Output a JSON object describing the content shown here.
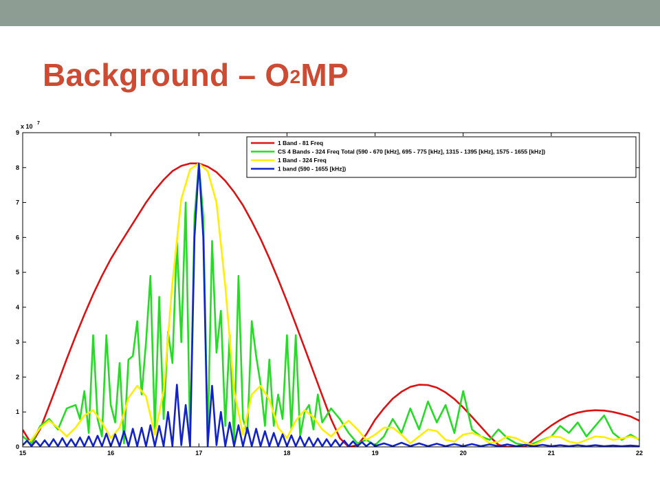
{
  "slide": {
    "title_main": "Background – O",
    "title_sup": "2",
    "title_tail": "MP",
    "title_color": "#cc4b32",
    "top_bar_color": "#8e9d94"
  },
  "chart_data": {
    "type": "line",
    "xlim": [
      15,
      22
    ],
    "ylim": [
      0,
      9
    ],
    "xticks": [
      15,
      16,
      17,
      18,
      19,
      20,
      21,
      22
    ],
    "yticks": [
      0,
      1,
      2,
      3,
      4,
      5,
      6,
      7,
      8,
      9
    ],
    "y_multiplier_base": "x 10",
    "y_multiplier_exp": "7",
    "legend_position": "top-right",
    "grid": false,
    "series": [
      {
        "name": "1 Band - 81 Freq",
        "color": "#dd1111",
        "x": [
          15.0,
          15.1,
          15.2,
          15.3,
          15.4,
          15.5,
          15.6,
          15.7,
          15.8,
          15.9,
          16.0,
          16.1,
          16.2,
          16.3,
          16.4,
          16.5,
          16.6,
          16.7,
          16.8,
          16.9,
          17.0,
          17.1,
          17.2,
          17.3,
          17.4,
          17.5,
          17.6,
          17.7,
          17.8,
          17.9,
          18.0,
          18.1,
          18.2,
          18.3,
          18.4,
          18.5,
          18.6,
          18.7,
          18.8,
          18.9,
          19.0,
          19.1,
          19.2,
          19.3,
          19.4,
          19.5,
          19.6,
          19.7,
          19.8,
          19.9,
          20.0,
          20.1,
          20.2,
          20.3,
          20.4,
          20.5,
          20.6,
          20.7,
          20.8,
          20.9,
          21.0,
          21.1,
          21.2,
          21.3,
          21.4,
          21.5,
          21.6,
          21.7,
          21.8,
          21.9,
          22.0
        ],
        "y": [
          0.49,
          0.08,
          0.52,
          1.17,
          1.84,
          2.52,
          3.17,
          3.79,
          4.37,
          4.9,
          5.38,
          5.8,
          6.2,
          6.6,
          7.0,
          7.35,
          7.65,
          7.9,
          8.05,
          8.12,
          8.12,
          8.03,
          7.87,
          7.62,
          7.3,
          6.92,
          6.46,
          5.96,
          5.4,
          4.8,
          4.17,
          3.51,
          2.83,
          2.15,
          1.47,
          0.8,
          0.25,
          0.0,
          0.05,
          0.36,
          0.78,
          1.1,
          1.38,
          1.58,
          1.72,
          1.78,
          1.77,
          1.7,
          1.56,
          1.37,
          1.13,
          0.86,
          0.58,
          0.3,
          0.06,
          0.0,
          0.0,
          0.0,
          0.21,
          0.42,
          0.61,
          0.77,
          0.9,
          0.98,
          1.03,
          1.05,
          1.04,
          1.0,
          0.94,
          0.87,
          0.75
        ]
      },
      {
        "name": "CS 4 Bands - 324 Freq Total (590 - 670 [kHz], 695 - 775 [kHz], 1315 - 1395 [kHz], 1575 - 1655 [kHz])",
        "color": "#22dd22",
        "x": [
          15.0,
          15.1,
          15.2,
          15.3,
          15.4,
          15.5,
          15.6,
          15.65,
          15.7,
          15.75,
          15.8,
          15.85,
          15.9,
          15.95,
          16.0,
          16.05,
          16.1,
          16.15,
          16.2,
          16.25,
          16.3,
          16.35,
          16.4,
          16.45,
          16.5,
          16.55,
          16.6,
          16.65,
          16.7,
          16.75,
          16.8,
          16.85,
          16.9,
          16.95,
          17.0,
          17.05,
          17.1,
          17.15,
          17.2,
          17.25,
          17.3,
          17.35,
          17.4,
          17.45,
          17.5,
          17.55,
          17.6,
          17.65,
          17.7,
          17.75,
          17.8,
          17.85,
          17.9,
          17.95,
          18.0,
          18.05,
          18.1,
          18.15,
          18.2,
          18.25,
          18.3,
          18.35,
          18.4,
          18.5,
          18.6,
          18.7,
          18.8,
          18.9,
          19.0,
          19.1,
          19.2,
          19.3,
          19.4,
          19.5,
          19.6,
          19.7,
          19.8,
          19.9,
          20.0,
          20.1,
          20.2,
          20.3,
          20.4,
          20.5,
          20.6,
          20.7,
          20.8,
          20.9,
          21.0,
          21.1,
          21.2,
          21.3,
          21.4,
          21.5,
          21.6,
          21.7,
          21.8,
          21.9,
          22.0
        ],
        "y": [
          0.3,
          0.1,
          0.6,
          0.8,
          0.5,
          1.1,
          1.2,
          0.8,
          1.6,
          0.4,
          3.2,
          0.8,
          0.3,
          3.2,
          1.2,
          0.7,
          2.4,
          0.1,
          2.5,
          2.6,
          3.6,
          1.5,
          3.0,
          4.9,
          0.5,
          4.3,
          0.8,
          3.3,
          2.4,
          5.9,
          3.0,
          7.0,
          0.2,
          6.6,
          8.1,
          6.6,
          0.2,
          5.9,
          2.7,
          3.9,
          0.6,
          3.2,
          0.1,
          4.9,
          0.8,
          0.4,
          3.6,
          2.6,
          1.8,
          0.6,
          2.5,
          0.6,
          1.5,
          0.8,
          3.2,
          0.5,
          3.2,
          0.3,
          1.0,
          1.2,
          0.5,
          1.5,
          0.7,
          1.1,
          0.8,
          0.4,
          0.1,
          0.2,
          0.05,
          0.3,
          0.8,
          0.4,
          1.1,
          0.5,
          1.3,
          0.7,
          1.2,
          0.4,
          1.6,
          0.5,
          0.3,
          0.2,
          0.5,
          0.25,
          0.1,
          0.05,
          0.1,
          0.2,
          0.3,
          0.6,
          0.4,
          0.7,
          0.3,
          0.6,
          0.9,
          0.4,
          0.2,
          0.35,
          0.2
        ]
      },
      {
        "name": "1 Band - 324 Freq",
        "color": "#ffee00",
        "x": [
          15.0,
          15.1,
          15.2,
          15.3,
          15.4,
          15.5,
          15.6,
          15.7,
          15.8,
          15.9,
          16.0,
          16.1,
          16.2,
          16.3,
          16.4,
          16.5,
          16.6,
          16.7,
          16.8,
          16.9,
          17.0,
          17.1,
          17.2,
          17.3,
          17.4,
          17.5,
          17.6,
          17.7,
          17.8,
          17.9,
          18.0,
          18.1,
          18.2,
          18.3,
          18.4,
          18.5,
          18.6,
          18.7,
          18.8,
          18.9,
          19.0,
          19.1,
          19.2,
          19.3,
          19.4,
          19.5,
          19.6,
          19.7,
          19.8,
          19.9,
          20.0,
          20.1,
          20.2,
          20.3,
          20.4,
          20.5,
          20.6,
          20.7,
          20.8,
          20.9,
          21.0,
          21.1,
          21.2,
          21.3,
          21.4,
          21.5,
          21.6,
          21.7,
          21.8,
          21.9,
          22.0
        ],
        "y": [
          0.05,
          0.2,
          0.55,
          0.75,
          0.55,
          0.3,
          0.55,
          0.9,
          1.05,
          0.7,
          0.25,
          0.55,
          1.4,
          1.75,
          1.45,
          0.35,
          1.6,
          4.7,
          7.1,
          7.95,
          8.12,
          7.9,
          7.0,
          4.6,
          1.6,
          0.35,
          1.5,
          1.75,
          1.35,
          0.55,
          0.25,
          0.75,
          1.05,
          0.85,
          0.5,
          0.3,
          0.55,
          0.75,
          0.5,
          0.2,
          0.35,
          0.55,
          0.55,
          0.35,
          0.1,
          0.3,
          0.5,
          0.45,
          0.2,
          0.15,
          0.35,
          0.4,
          0.3,
          0.1,
          0.15,
          0.3,
          0.25,
          0.12,
          0.05,
          0.18,
          0.3,
          0.28,
          0.15,
          0.1,
          0.2,
          0.3,
          0.28,
          0.2,
          0.24,
          0.3,
          0.22
        ]
      },
      {
        "name": "1 band (590 - 1655 [kHz])",
        "color": "#1122cc",
        "x": [
          15.0,
          15.05,
          15.1,
          15.15,
          15.2,
          15.25,
          15.3,
          15.35,
          15.4,
          15.45,
          15.5,
          15.55,
          15.6,
          15.65,
          15.7,
          15.75,
          15.8,
          15.85,
          15.9,
          15.95,
          16.0,
          16.05,
          16.1,
          16.15,
          16.2,
          16.25,
          16.3,
          16.35,
          16.4,
          16.45,
          16.5,
          16.55,
          16.6,
          16.65,
          16.7,
          16.75,
          16.8,
          16.85,
          16.9,
          16.95,
          17.0,
          17.05,
          17.1,
          17.15,
          17.2,
          17.25,
          17.3,
          17.35,
          17.4,
          17.45,
          17.5,
          17.55,
          17.6,
          17.65,
          17.7,
          17.75,
          17.8,
          17.85,
          17.9,
          17.95,
          18.0,
          18.05,
          18.1,
          18.15,
          18.2,
          18.25,
          18.3,
          18.35,
          18.4,
          18.45,
          18.5,
          18.55,
          18.6,
          18.65,
          18.7,
          18.75,
          18.8,
          18.85,
          18.9,
          18.95,
          19.0,
          19.1,
          19.2,
          19.3,
          19.4,
          19.5,
          19.6,
          19.7,
          19.8,
          19.9,
          20.0,
          20.1,
          20.2,
          20.3,
          20.4,
          20.5,
          20.6,
          20.7,
          20.8,
          20.9,
          21.0,
          21.1,
          21.2,
          21.3,
          21.4,
          21.5,
          21.6,
          21.7,
          21.8,
          21.9,
          22.0
        ],
        "y": [
          0.05,
          0.18,
          0.02,
          0.17,
          0.02,
          0.19,
          0.02,
          0.22,
          0.02,
          0.25,
          0.02,
          0.22,
          0.02,
          0.27,
          0.02,
          0.3,
          0.02,
          0.32,
          0.02,
          0.38,
          0.02,
          0.36,
          0.02,
          0.45,
          0.02,
          0.52,
          0.02,
          0.55,
          0.02,
          0.62,
          0.02,
          0.6,
          0.02,
          1.0,
          0.02,
          1.78,
          0.05,
          1.2,
          0.02,
          6.0,
          8.12,
          6.0,
          0.02,
          1.75,
          0.05,
          1.0,
          0.02,
          0.7,
          0.02,
          0.62,
          0.02,
          0.55,
          0.02,
          0.52,
          0.02,
          0.45,
          0.02,
          0.4,
          0.02,
          0.36,
          0.02,
          0.33,
          0.02,
          0.3,
          0.02,
          0.27,
          0.02,
          0.24,
          0.02,
          0.22,
          0.02,
          0.2,
          0.02,
          0.18,
          0.02,
          0.16,
          0.02,
          0.14,
          0.02,
          0.12,
          0.02,
          0.1,
          0.02,
          0.12,
          0.02,
          0.1,
          0.02,
          0.09,
          0.02,
          0.08,
          0.02,
          0.08,
          0.02,
          0.07,
          0.02,
          0.07,
          0.02,
          0.06,
          0.02,
          0.06,
          0.02,
          0.05,
          0.02,
          0.05,
          0.02,
          0.05,
          0.02,
          0.04,
          0.02,
          0.04,
          0.02
        ]
      }
    ]
  }
}
